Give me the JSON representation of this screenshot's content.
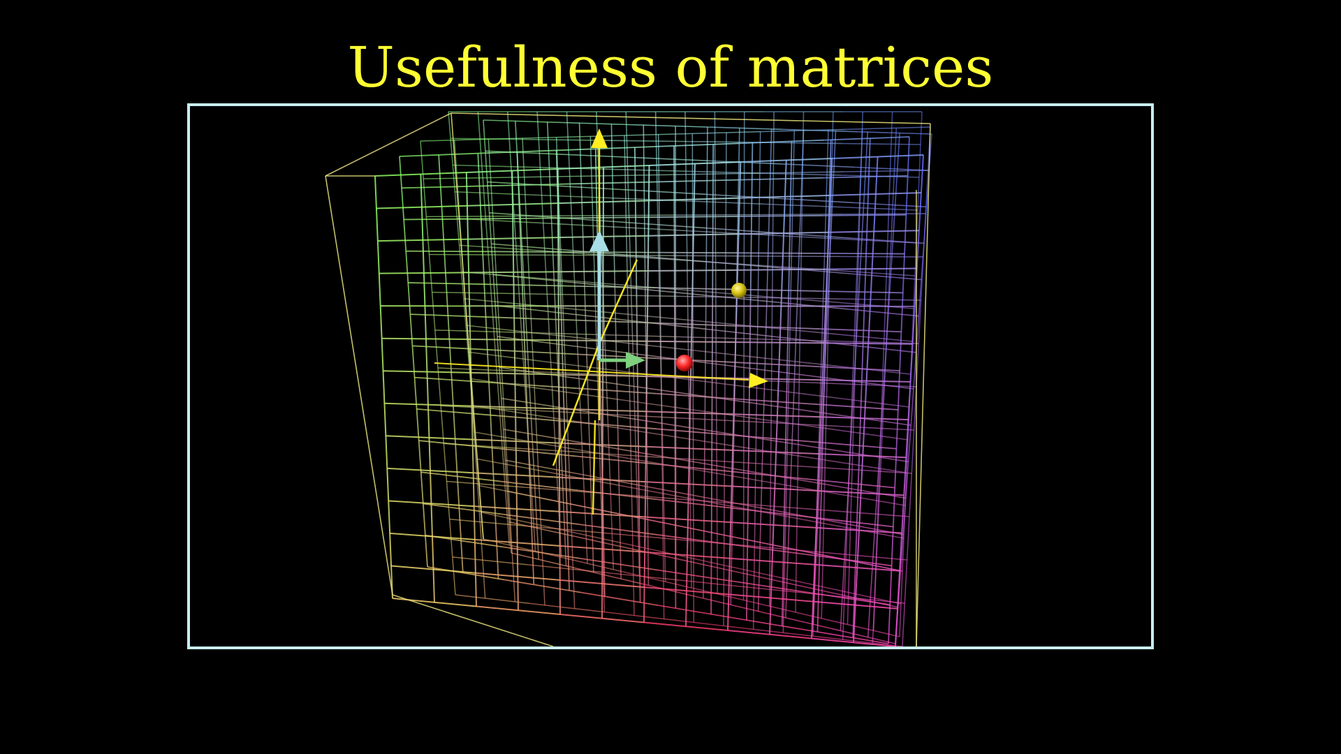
{
  "title": "Usefulness of matrices",
  "colors": {
    "title": "#ffff33",
    "frame": "#c8eef2",
    "background": "#000000",
    "axis": "#ffee22",
    "vector_i": "#7fd07f",
    "vector_j": "#a8dde6",
    "point_red": "#ff3333",
    "point_yellow": "#e8d21a"
  },
  "grid_palette": {
    "green": "#7cff5a",
    "cyan": "#9ffff0",
    "blue": "#5b6bff",
    "magenta": "#ff4fd8",
    "red": "#ff3366",
    "yellow": "#ffe066"
  },
  "icons": {
    "axis_arrowhead": "cone-arrow",
    "vector_arrowhead": "cone-arrow",
    "point_marker": "sphere"
  }
}
